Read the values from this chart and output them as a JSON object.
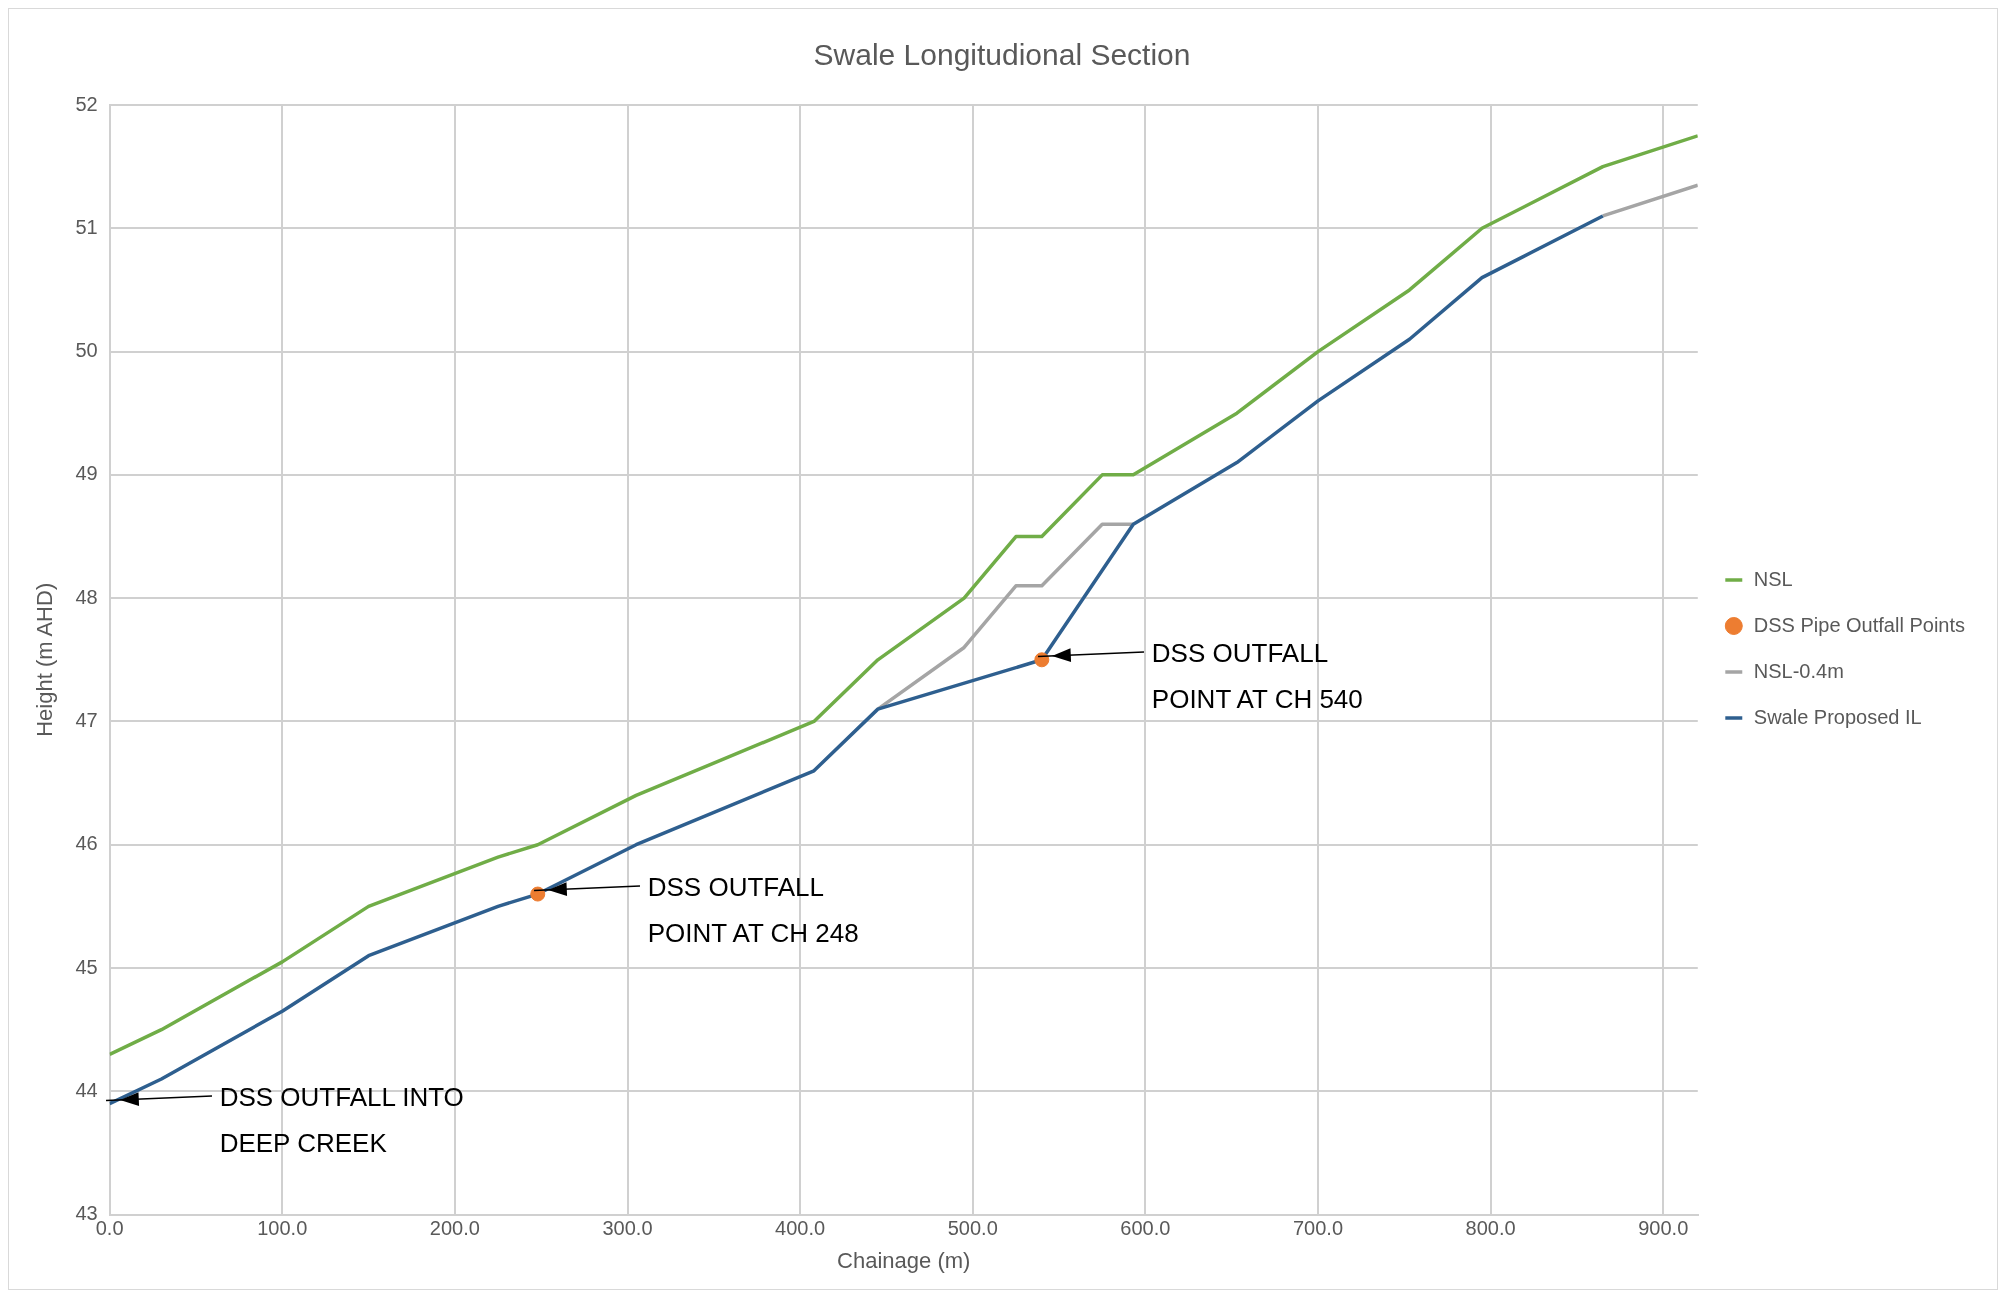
{
  "chart_data": {
    "type": "line",
    "title": "Swale Longitudional Section",
    "xlabel": "Chainage (m)",
    "ylabel": "Height (m AHD)",
    "xlim": [
      0,
      920
    ],
    "xticks": [
      {
        "value": 0,
        "label": "0.0"
      },
      {
        "value": 100,
        "label": "100.0"
      },
      {
        "value": 200,
        "label": "200.0"
      },
      {
        "value": 300,
        "label": "300.0"
      },
      {
        "value": 400,
        "label": "400.0"
      },
      {
        "value": 500,
        "label": "500.0"
      },
      {
        "value": 600,
        "label": "600.0"
      },
      {
        "value": 700,
        "label": "700.0"
      },
      {
        "value": 800,
        "label": "800.0"
      },
      {
        "value": 900,
        "label": "900.0"
      }
    ],
    "ylim": [
      43,
      52
    ],
    "yticks": [
      43,
      44,
      45,
      46,
      47,
      48,
      49,
      50,
      51,
      52
    ],
    "grid": true,
    "legend": "right",
    "marker": "none",
    "line_style": "solid",
    "series": [
      {
        "name": "NSL",
        "color": "#70ad47",
        "x": [
          0,
          30,
          100,
          150,
          225,
          248,
          305,
          408,
          445,
          495,
          525,
          540,
          575,
          593,
          653,
          700,
          753,
          795,
          865,
          920
        ],
        "values": [
          44.3,
          44.5,
          45.05,
          45.5,
          45.9,
          46.0,
          46.4,
          47.0,
          47.5,
          48.0,
          48.5,
          48.5,
          49.0,
          49.0,
          49.5,
          50.0,
          50.5,
          51.0,
          51.5,
          51.75
        ]
      },
      {
        "name": "DSS Pipe Outfall Points",
        "type": "scatter",
        "marker": "circle",
        "color": "#ed7d31",
        "x": [
          248,
          540
        ],
        "values": [
          45.6,
          47.5
        ]
      },
      {
        "name": "NSL-0.4m",
        "color": "#a5a5a5",
        "x": [
          445,
          495,
          525,
          540,
          575,
          593,
          653,
          700,
          753,
          795,
          865,
          920
        ],
        "values": [
          47.1,
          47.6,
          48.1,
          48.1,
          48.6,
          48.6,
          null,
          null,
          null,
          null,
          51.1,
          51.35
        ]
      },
      {
        "name": "Swale Proposed IL",
        "color": "#2e5f8f",
        "x": [
          0,
          30,
          100,
          150,
          225,
          248,
          305,
          408,
          445,
          540,
          593,
          653,
          700,
          753,
          795,
          865
        ],
        "values": [
          43.9,
          44.1,
          44.65,
          45.1,
          45.5,
          45.6,
          46.0,
          46.6,
          47.1,
          47.5,
          48.6,
          49.1,
          49.6,
          50.1,
          50.6,
          51.1
        ]
      }
    ],
    "annotations": [
      {
        "text": "DSS OUTFALL INTO\nDEEP CREEK",
        "x": 0,
        "y": 43.9
      },
      {
        "text": "DSS OUTFALL\nPOINT AT CH 248",
        "x": 248,
        "y": 45.6
      },
      {
        "text": "DSS OUTFALL\nPOINT AT CH 540",
        "x": 540,
        "y": 47.5
      }
    ]
  }
}
